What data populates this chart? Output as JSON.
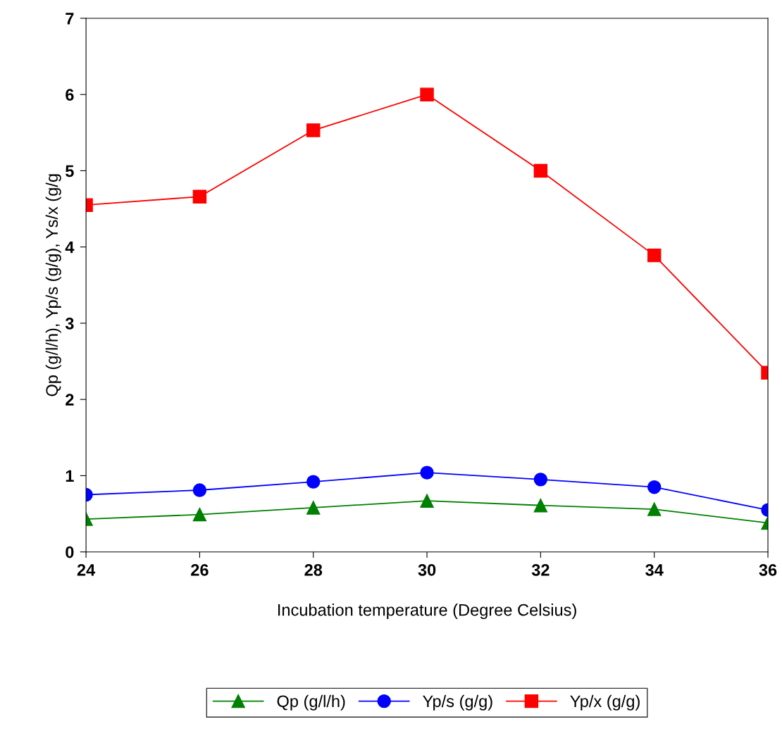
{
  "chart_data": {
    "type": "line",
    "xlabel": "Incubation temperature (Degree Celsius)",
    "ylabel": "Qp (g/l/h), Yp/s (g/g), Ys/x (g/g",
    "x": [
      24,
      26,
      28,
      30,
      32,
      34,
      36
    ],
    "series": [
      {
        "name": "Qp (g/l/h)",
        "color": "#008000",
        "marker": "triangle",
        "values": [
          0.43,
          0.49,
          0.58,
          0.67,
          0.61,
          0.56,
          0.38
        ]
      },
      {
        "name": "Yp/s (g/g)",
        "color": "#0000ff",
        "marker": "circle",
        "values": [
          0.75,
          0.81,
          0.92,
          1.04,
          0.95,
          0.85,
          0.55
        ]
      },
      {
        "name": "Yp/x (g/g)",
        "color": "#ff0000",
        "marker": "square",
        "values": [
          4.55,
          4.66,
          5.53,
          6.0,
          5.0,
          3.89,
          2.35
        ]
      }
    ],
    "xlim": [
      24,
      36
    ],
    "xticks": [
      24,
      26,
      28,
      30,
      32,
      34,
      36
    ],
    "ylim": [
      0,
      7
    ],
    "yticks": [
      0,
      1,
      2,
      3,
      4,
      5,
      6,
      7
    ],
    "grid": false,
    "legend": "bottom",
    "line_style": "solid"
  }
}
